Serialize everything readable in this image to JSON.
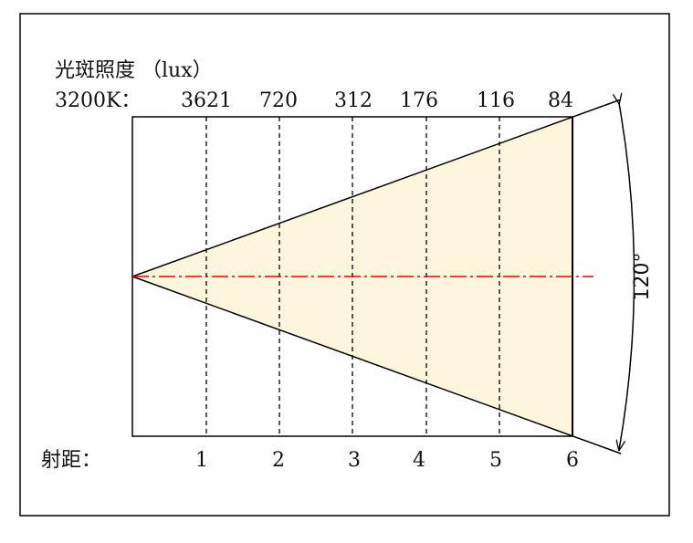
{
  "title": "光斑照度 （lux）",
  "color_temperature": "3200K：",
  "illuminance": [
    3621,
    720,
    312,
    176,
    116,
    84
  ],
  "distance_label": "射距：",
  "distances": [
    1,
    2,
    3,
    4,
    5,
    6
  ],
  "beam_angle": "120°"
}
